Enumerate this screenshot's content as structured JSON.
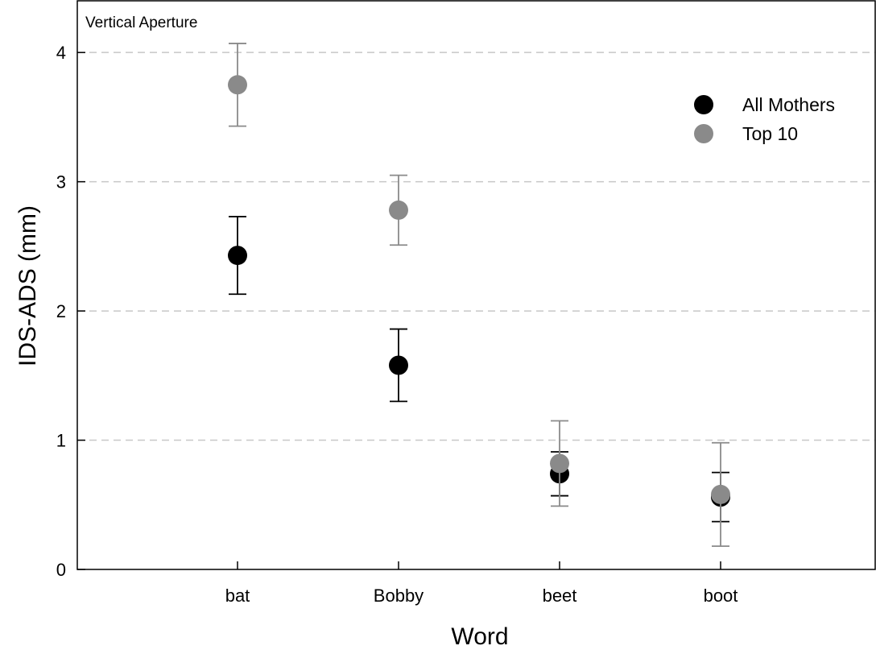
{
  "chart_data": {
    "type": "scatter",
    "title": "Vertical Aperture",
    "xlabel": "Word",
    "ylabel": "IDS-ADS (mm)",
    "categories": [
      "bat",
      "Bobby",
      "beet",
      "boot"
    ],
    "ylim": [
      0,
      4.4
    ],
    "yticks": [
      0,
      1,
      2,
      3,
      4
    ],
    "grid": "horizontal dashed at 1, 2, 3, 4",
    "legend_position": "top-right",
    "series": [
      {
        "name": "All Mothers",
        "color": "#000000",
        "values": [
          2.43,
          1.58,
          0.74,
          0.56
        ],
        "error": [
          0.3,
          0.28,
          0.17,
          0.19
        ]
      },
      {
        "name": "Top 10",
        "color": "#8a8a8a",
        "values": [
          3.75,
          2.78,
          0.82,
          0.58
        ],
        "error": [
          0.32,
          0.27,
          0.33,
          0.4
        ]
      }
    ]
  }
}
